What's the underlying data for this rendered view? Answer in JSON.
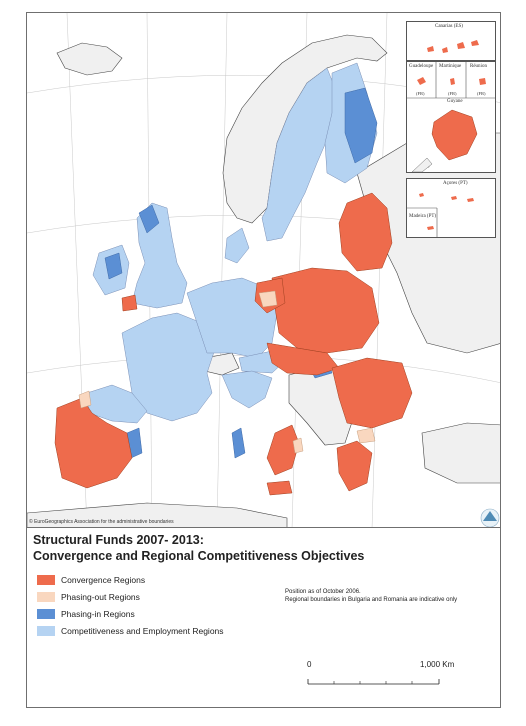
{
  "title": {
    "line1": "Structural Funds 2007- 2013:",
    "line2": "Convergence and Regional Competitiveness Objectives"
  },
  "legend": [
    {
      "label": "Convergence Regions",
      "color": "#ee6b4c"
    },
    {
      "label": "Phasing-out Regions",
      "color": "#f9d7bf"
    },
    {
      "label": "Phasing-in Regions",
      "color": "#5b8fd4"
    },
    {
      "label": "Competitiveness and Employment Regions",
      "color": "#b5d3f2"
    }
  ],
  "notes": {
    "position": "Position as of October 2006.",
    "boundaries": "Regional boundaries in Bulgaria and Romania are indicative only"
  },
  "scale": {
    "start": "0",
    "end": "1,000 Km"
  },
  "copyright": "© EuroGeographics Association for the administrative boundaries",
  "insets": {
    "canarias": "Canarias (ES)",
    "guadeloupe": "Guadeloupe",
    "martinique": "Martinique",
    "reunion": "Réunion",
    "guyane": "Guyane",
    "acores": "Açores (PT)",
    "madeira": "Madeira (PT)",
    "fr_code": "(FR)"
  },
  "colors": {
    "convergence": "#ee6b4c",
    "phasing_out": "#f9d7bf",
    "phasing_in": "#5b8fd4",
    "competitiveness": "#b5d3f2",
    "non_eu_land": "#f0f0f0",
    "sea": "#ffffff",
    "boundary": "#444444"
  }
}
